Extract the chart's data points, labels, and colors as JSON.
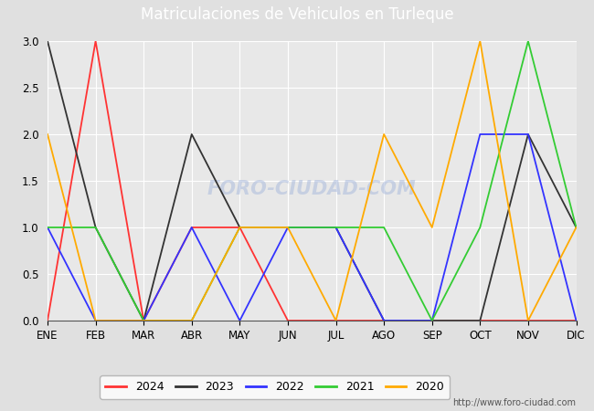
{
  "title": "Matriculaciones de Vehiculos en Turleque",
  "months": [
    "ENE",
    "FEB",
    "MAR",
    "ABR",
    "MAY",
    "JUN",
    "JUL",
    "AGO",
    "SEP",
    "OCT",
    "NOV",
    "DIC"
  ],
  "series": {
    "2024": {
      "color": "#ff3333",
      "values": [
        0,
        3,
        0,
        1,
        1,
        0,
        0,
        0,
        0,
        0,
        0,
        0
      ]
    },
    "2023": {
      "color": "#333333",
      "values": [
        3,
        1,
        0,
        2,
        1,
        1,
        1,
        0,
        0,
        0,
        2,
        1
      ]
    },
    "2022": {
      "color": "#3333ff",
      "values": [
        1,
        0,
        0,
        1,
        0,
        1,
        1,
        0,
        0,
        2,
        2,
        0
      ]
    },
    "2021": {
      "color": "#33cc33",
      "values": [
        1,
        1,
        0,
        0,
        1,
        1,
        1,
        1,
        0,
        1,
        3,
        1
      ]
    },
    "2020": {
      "color": "#ffaa00",
      "values": [
        2,
        0,
        0,
        0,
        1,
        1,
        0,
        2,
        1,
        3,
        0,
        1
      ]
    }
  },
  "ylim": [
    0.0,
    3.0
  ],
  "yticks": [
    0.0,
    0.5,
    1.0,
    1.5,
    2.0,
    2.5,
    3.0
  ],
  "background_color": "#e0e0e0",
  "plot_bg_color": "#e8e8e8",
  "title_bg_color": "#5599dd",
  "title_text_color": "#ffffff",
  "url": "http://www.foro-ciudad.com",
  "watermark_text": "foro-ciudad.com",
  "watermark_color": "#aabbdd",
  "watermark_alpha": 0.55,
  "legend_order": [
    "2024",
    "2023",
    "2022",
    "2021",
    "2020"
  ],
  "legend_labels": [
    "2024",
    "2023",
    "2022",
    "2021",
    "2020"
  ]
}
